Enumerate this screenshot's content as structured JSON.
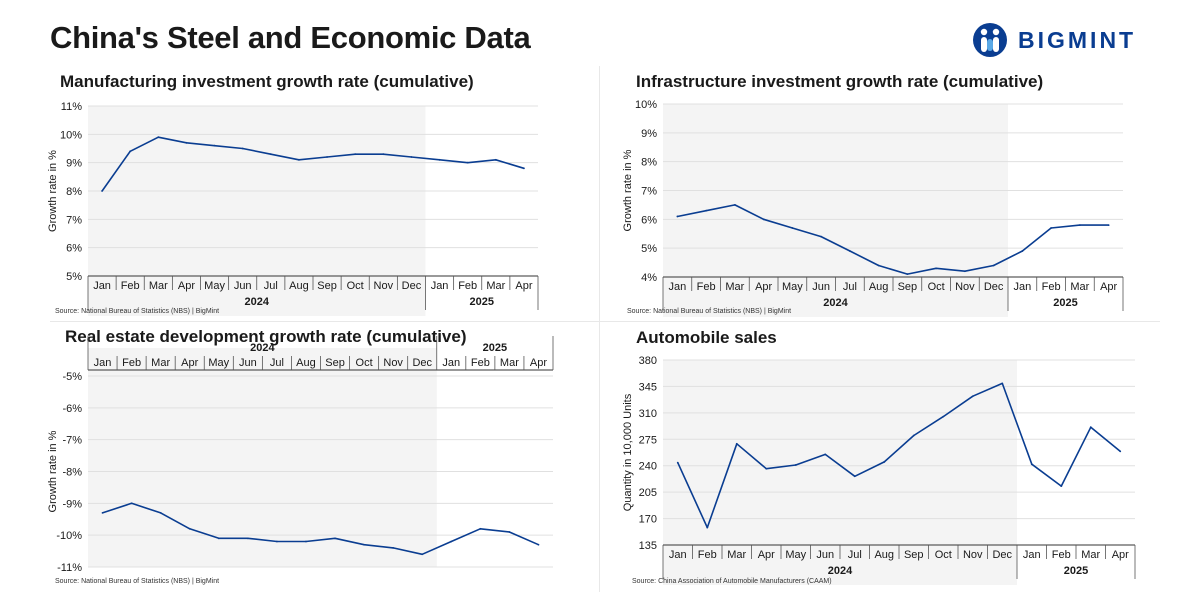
{
  "page": {
    "title": "China's Steel and Economic Data",
    "brand": "BIGMINT"
  },
  "colors": {
    "line": "#0a3d91",
    "shade": "#f4f4f4",
    "grid": "#e0e0e0",
    "brand": "#0a3d91"
  },
  "panels": [
    {
      "title": "Manufacturing investment growth rate (cumulative)",
      "source": "Source: National Bureau of Statistics (NBS) |  BigMint"
    },
    {
      "title": "Infrastructure investment growth rate (cumulative)",
      "source": "Source: National Bureau of Statistics (NBS) |  BigMint"
    },
    {
      "title": "Real estate development growth rate (cumulative)",
      "source": "Source: National Bureau of Statistics (NBS) |  BigMint"
    },
    {
      "title": "Automobile sales",
      "source": "Source: China Association of Automobile Manufacturers (CAAM)"
    }
  ],
  "chart_data": [
    {
      "type": "line",
      "title": "Manufacturing investment growth rate (cumulative)",
      "categories": [
        "Jan",
        "Feb",
        "Mar",
        "Apr",
        "May",
        "Jun",
        "Jul",
        "Aug",
        "Sep",
        "Oct",
        "Nov",
        "Dec",
        "Jan",
        "Feb",
        "Mar",
        "Apr"
      ],
      "groups": [
        {
          "label": "2024",
          "count": 12
        },
        {
          "label": "2025",
          "count": 4
        }
      ],
      "values": [
        8.0,
        9.4,
        9.9,
        9.7,
        9.6,
        9.5,
        9.3,
        9.1,
        9.2,
        9.3,
        9.3,
        9.2,
        9.1,
        9.0,
        9.1,
        8.8
      ],
      "ylabel": "Growth rate in %",
      "ylim": [
        5,
        11
      ],
      "yticks": [
        5,
        6,
        7,
        8,
        9,
        10,
        11
      ],
      "ytick_labels": [
        "5%",
        "6%",
        "7%",
        "8%",
        "9%",
        "10%",
        "11%"
      ],
      "x_axis_position": "bottom",
      "shaded_group": "2024",
      "grid": true
    },
    {
      "type": "line",
      "title": "Infrastructure investment growth rate (cumulative)",
      "categories": [
        "Jan",
        "Feb",
        "Mar",
        "Apr",
        "May",
        "Jun",
        "Jul",
        "Aug",
        "Sep",
        "Oct",
        "Nov",
        "Dec",
        "Jan",
        "Feb",
        "Mar",
        "Apr"
      ],
      "groups": [
        {
          "label": "2024",
          "count": 12
        },
        {
          "label": "2025",
          "count": 4
        }
      ],
      "values": [
        6.1,
        6.3,
        6.5,
        6.0,
        5.7,
        5.4,
        4.9,
        4.4,
        4.1,
        4.3,
        4.2,
        4.4,
        4.9,
        5.7,
        5.8,
        5.8
      ],
      "ylabel": "Growth rate in %",
      "ylim": [
        4,
        10
      ],
      "yticks": [
        4,
        5,
        6,
        7,
        8,
        9,
        10
      ],
      "ytick_labels": [
        "4%",
        "5%",
        "6%",
        "7%",
        "8%",
        "9%",
        "10%"
      ],
      "x_axis_position": "bottom",
      "shaded_group": "2024",
      "grid": true
    },
    {
      "type": "line",
      "title": "Real estate development growth rate (cumulative)",
      "categories": [
        "Jan",
        "Feb",
        "Mar",
        "Apr",
        "May",
        "Jun",
        "Jul",
        "Aug",
        "Sep",
        "Oct",
        "Nov",
        "Dec",
        "Jan",
        "Feb",
        "Mar",
        "Apr"
      ],
      "groups": [
        {
          "label": "2024",
          "count": 12
        },
        {
          "label": "2025",
          "count": 4
        }
      ],
      "values": [
        -9.3,
        -9.0,
        -9.3,
        -9.8,
        -10.1,
        -10.1,
        -10.2,
        -10.2,
        -10.1,
        -10.3,
        -10.4,
        -10.6,
        -10.2,
        -9.8,
        -9.9,
        -10.3
      ],
      "ylabel": "Growth rate in %",
      "ylim": [
        -11,
        -5
      ],
      "yticks": [
        -11,
        -10,
        -9,
        -8,
        -7,
        -6,
        -5
      ],
      "ytick_labels": [
        "-11%",
        "-10%",
        "-9%",
        "-8%",
        "-7%",
        "-6%",
        "-5%"
      ],
      "x_axis_position": "top",
      "shaded_group": "2024",
      "grid": true
    },
    {
      "type": "line",
      "title": "Automobile sales",
      "categories": [
        "Jan",
        "Feb",
        "Mar",
        "Apr",
        "May",
        "Jun",
        "Jul",
        "Aug",
        "Sep",
        "Oct",
        "Nov",
        "Dec",
        "Jan",
        "Feb",
        "Mar",
        "Apr"
      ],
      "groups": [
        {
          "label": "2024",
          "count": 12
        },
        {
          "label": "2025",
          "count": 4
        }
      ],
      "values": [
        244,
        158,
        269,
        236,
        241,
        255,
        226,
        245,
        280,
        305,
        332,
        349,
        242,
        213,
        291,
        259
      ],
      "ylabel": "Quantity in 10,000 Units",
      "ylim": [
        135,
        380
      ],
      "yticks": [
        135,
        170,
        205,
        240,
        275,
        310,
        345,
        380
      ],
      "ytick_labels": [
        "135",
        "170",
        "205",
        "240",
        "275",
        "310",
        "345",
        "380"
      ],
      "x_axis_position": "bottom",
      "shaded_group": "2024",
      "grid": true
    }
  ]
}
